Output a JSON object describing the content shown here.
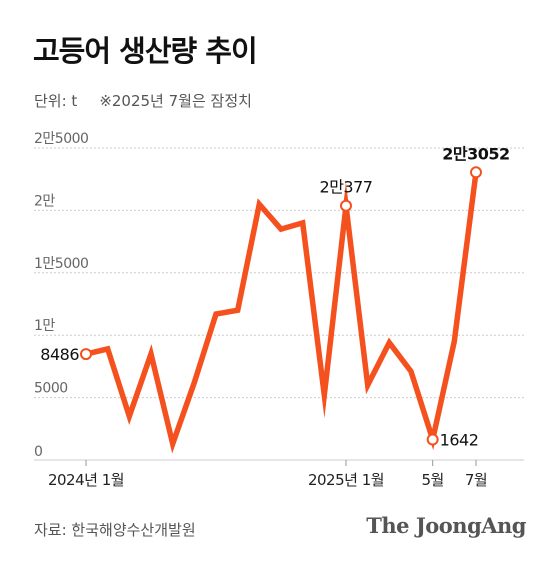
{
  "header": {
    "title": "고등어 생산량 추이",
    "unit": "단위: t",
    "note": "※2025년 7월은 잠정치"
  },
  "colors": {
    "line": "#f4511e",
    "grid": "#cccccc",
    "axis_text": "#666666"
  },
  "chart_data": {
    "type": "line",
    "title": "고등어 생산량 추이",
    "unit": "t",
    "grid": true,
    "ylim": [
      0,
      25000
    ],
    "y_ticks": [
      {
        "value": 0,
        "label": "0"
      },
      {
        "value": 5000,
        "label": "5000"
      },
      {
        "value": 10000,
        "label": "1만"
      },
      {
        "value": 15000,
        "label": "1만5000"
      },
      {
        "value": 20000,
        "label": "2만"
      },
      {
        "value": 25000,
        "label": "2만5000"
      }
    ],
    "x": [
      "2024-01",
      "2024-02",
      "2024-03",
      "2024-04",
      "2024-05",
      "2024-06",
      "2024-07",
      "2024-08",
      "2024-09",
      "2024-10",
      "2024-11",
      "2024-12",
      "2025-01",
      "2025-02",
      "2025-03",
      "2025-04",
      "2025-05",
      "2025-06",
      "2025-07"
    ],
    "x_ticks": [
      {
        "x": "2024-01",
        "label": "2024년 1월"
      },
      {
        "x": "2025-01",
        "label": "2025년 1월"
      },
      {
        "x": "2025-05",
        "label": "5월"
      },
      {
        "x": "2025-07",
        "label": "7월"
      }
    ],
    "series": [
      {
        "values": [
          8486,
          8900,
          3500,
          8500,
          1300,
          6200,
          11700,
          12000,
          20500,
          18500,
          19000,
          5200,
          20377,
          6000,
          9400,
          7100,
          1642,
          9500,
          23052
        ]
      }
    ],
    "annotations": [
      {
        "x": "2024-01",
        "label": "8486",
        "pos": "left"
      },
      {
        "x": "2025-01",
        "label": "2만377",
        "pos": "above"
      },
      {
        "x": "2025-05",
        "label": "1642",
        "pos": "right"
      },
      {
        "x": "2025-07",
        "label": "2만3052",
        "pos": "above"
      }
    ]
  },
  "footer": {
    "source": "자료: 한국해양수산개발원",
    "logo": "The JoongAng"
  }
}
